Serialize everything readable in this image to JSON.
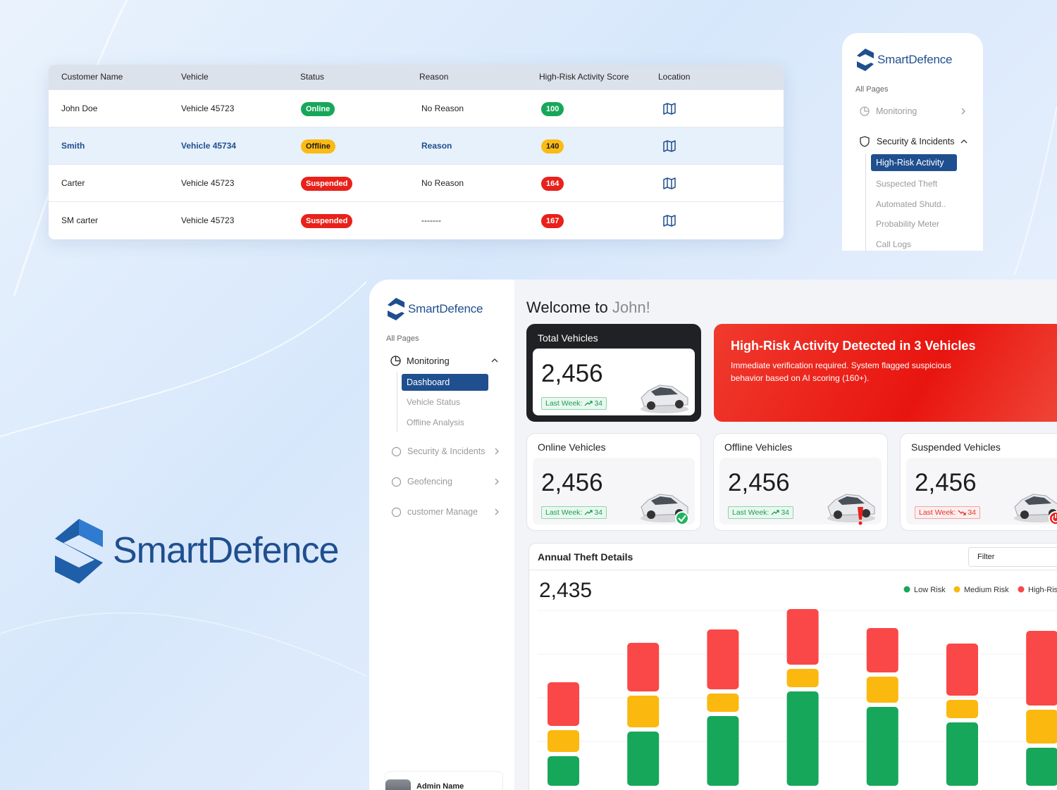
{
  "table": {
    "headers": [
      "Customer Name",
      "Vehicle",
      "Status",
      "Reason",
      "High-Risk Activity Score",
      "Location"
    ],
    "rows": [
      {
        "customer": "John Doe",
        "vehicle": "Vehicle 45723",
        "status": "Online",
        "status_tone": "green",
        "reason": "No Reason",
        "score": 100,
        "score_tone": "green"
      },
      {
        "customer": "Smith",
        "vehicle": "Vehicle 45734",
        "status": "Offline",
        "status_tone": "yellow",
        "reason": "Reason",
        "score": 140,
        "score_tone": "yellow",
        "selected": true
      },
      {
        "customer": "Carter",
        "vehicle": "Vehicle 45723",
        "status": "Suspended",
        "status_tone": "red",
        "reason": "No Reason",
        "score": 164,
        "score_tone": "red"
      },
      {
        "customer": "SM carter",
        "vehicle": "Vehicle 45723",
        "status": "Suspended",
        "status_tone": "red",
        "reason": "-------",
        "score": 167,
        "score_tone": "red"
      }
    ]
  },
  "side_menu": {
    "brand": "SmartDefence",
    "section": "All Pages",
    "items": [
      "Monitoring",
      "Security & Incidents"
    ],
    "children": [
      "High-Risk Activity",
      "Suspected Theft",
      "Automated Shutd..",
      "Probability Meter",
      "Call Logs"
    ],
    "active_child": 0
  },
  "logo": {
    "brand": "SmartDefence"
  },
  "dashboard": {
    "sidebar": {
      "brand": "SmartDefence",
      "section": "All Pages",
      "open_item": "Monitoring",
      "children": [
        "Dashboard",
        "Vehicle Status",
        "Offline Analysis"
      ],
      "active_child": 0,
      "items": [
        "Security & Incidents",
        "Geofencing",
        "customer Manage"
      ],
      "user": "Admin Name"
    },
    "welcome": "Welcome to",
    "user": "John!",
    "total": {
      "title": "Total Vehicles",
      "value": "2,456",
      "last_week_label": "Last Week:",
      "last_week": 34,
      "trend": "up"
    },
    "alert": {
      "title": "High-Risk Activity Detected in 3 Vehicles",
      "text": "Immediate verification required. System flagged suspicious behavior based on AI scoring (160+)."
    },
    "cards": [
      {
        "title": "Online Vehicles",
        "value": "2,456",
        "last_week_label": "Last Week:",
        "last_week": 34,
        "trend": "up",
        "badge": "check"
      },
      {
        "title": "Offline Vehicles",
        "value": "2,456",
        "last_week_label": "Last Week:",
        "last_week": 34,
        "trend": "up",
        "badge": "alert"
      },
      {
        "title": "Suspended Vehicles",
        "value": "2,456",
        "last_week_label": "Last Week:",
        "last_week": 34,
        "trend": "down",
        "badge": "power"
      }
    ]
  },
  "chart_data": {
    "type": "bar",
    "stacked": true,
    "title": "Annual Theft Details",
    "total": "2,435",
    "filter": "Filter",
    "series": [
      {
        "name": "Low Risk",
        "color": "#17a75a",
        "values": [
          42,
          77,
          99,
          134,
          112,
          90,
          54
        ]
      },
      {
        "name": "Medium Risk",
        "color": "#fbb80f",
        "values": [
          31,
          45,
          26,
          26,
          37,
          26,
          48
        ]
      },
      {
        "name": "High-Risk",
        "color": "#fa4747",
        "values": [
          62,
          69,
          85,
          79,
          63,
          74,
          106
        ]
      }
    ]
  }
}
